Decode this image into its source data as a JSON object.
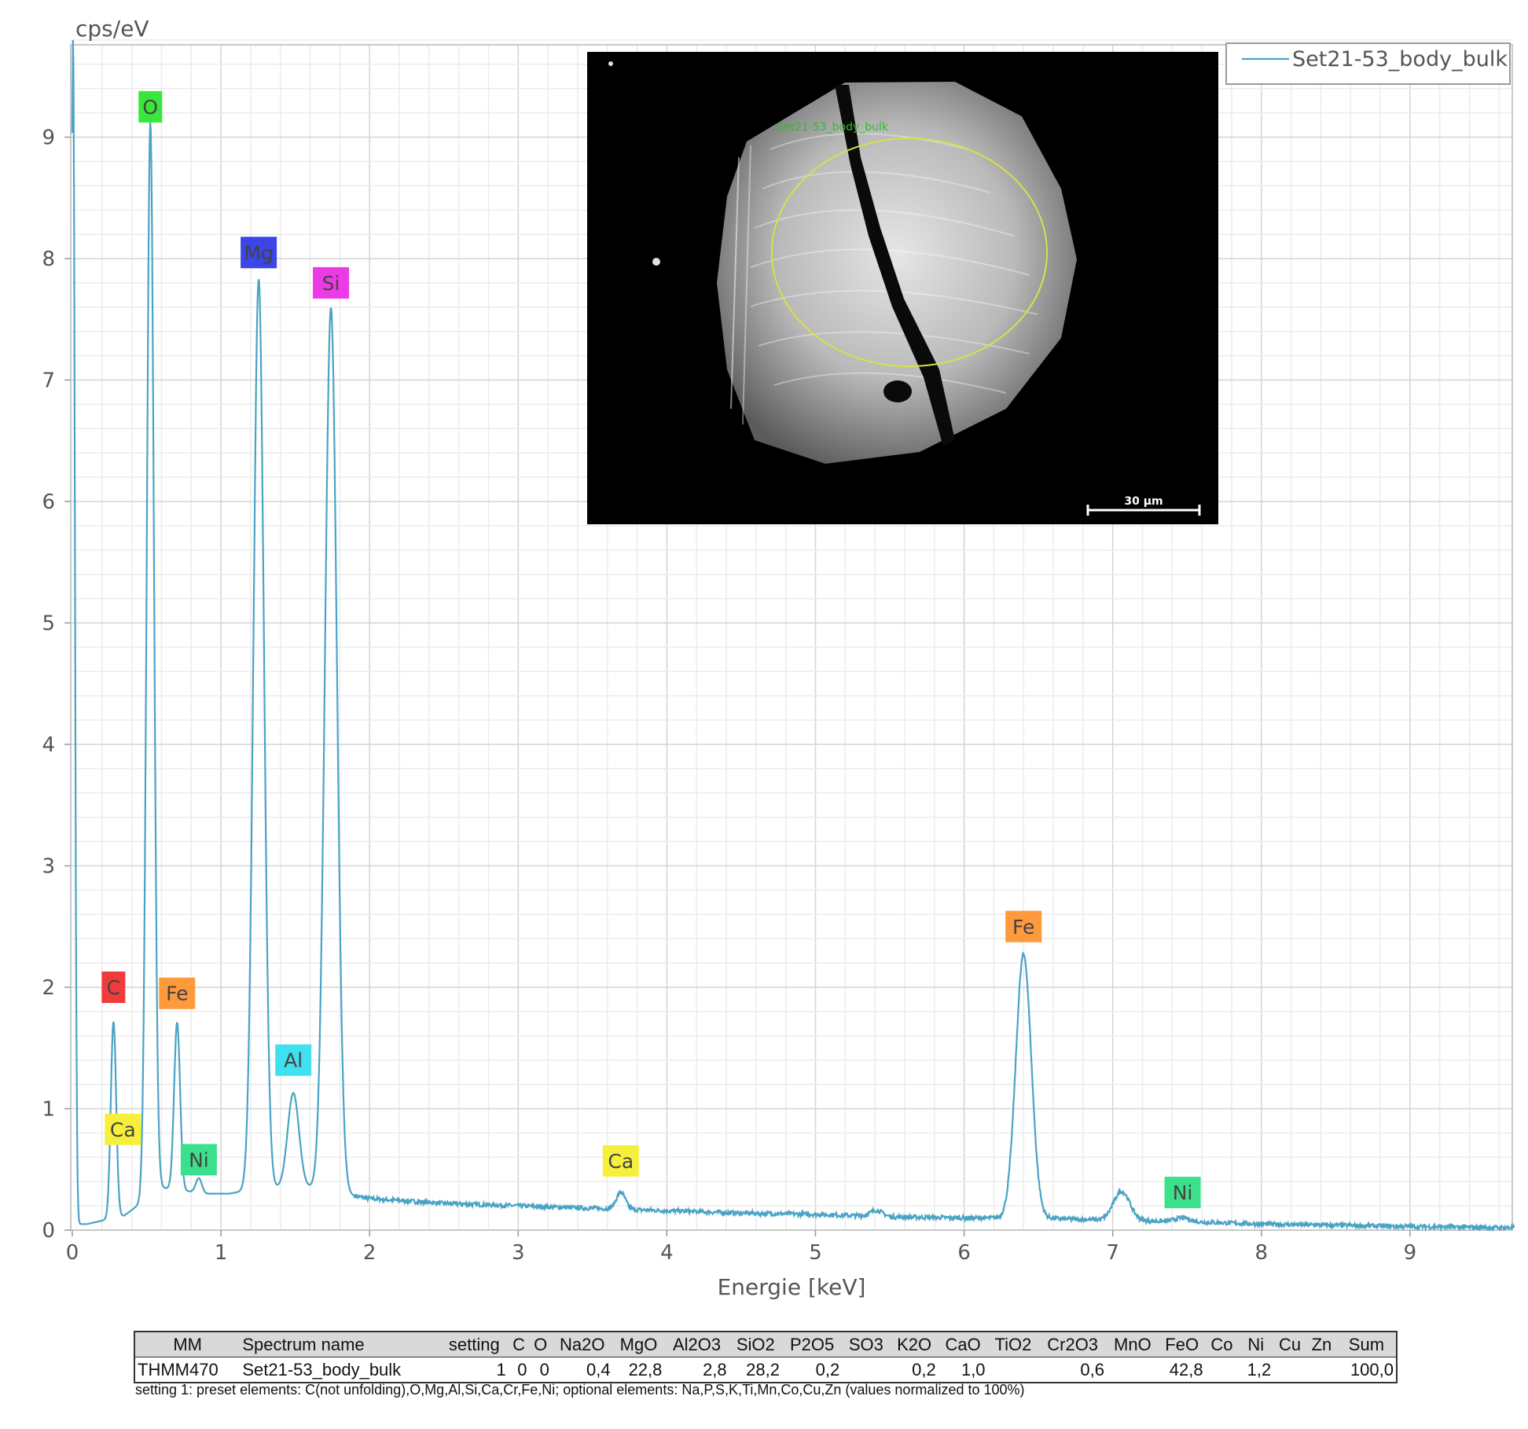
{
  "chart_data": {
    "type": "line",
    "ylabel": "cps/eV",
    "xlabel": "Energie [keV]",
    "xlim": [
      0,
      9.7
    ],
    "ylim": [
      0,
      9.8
    ],
    "x_ticks": [
      "0",
      "1",
      "2",
      "3",
      "4",
      "5",
      "6",
      "7",
      "8",
      "9"
    ],
    "y_ticks": [
      "0",
      "1",
      "2",
      "3",
      "4",
      "5",
      "6",
      "7",
      "8",
      "9"
    ],
    "grid": true,
    "legend": {
      "position": "top-right",
      "entries": [
        "Set21-53_body_bulk"
      ]
    },
    "series": [
      {
        "name": "Set21-53_body_bulk",
        "color": "#4aa3c4",
        "baseline": [
          [
            0.1,
            0.05
          ],
          [
            0.35,
            0.12
          ],
          [
            0.6,
            0.35
          ],
          [
            0.9,
            0.3
          ],
          [
            1.05,
            0.3
          ],
          [
            1.2,
            0.33
          ],
          [
            1.4,
            0.35
          ],
          [
            1.6,
            0.35
          ],
          [
            1.9,
            0.28
          ],
          [
            2.0,
            0.26
          ],
          [
            2.5,
            0.22
          ],
          [
            3.0,
            0.2
          ],
          [
            3.5,
            0.18
          ],
          [
            4.0,
            0.16
          ],
          [
            4.5,
            0.14
          ],
          [
            5.0,
            0.13
          ],
          [
            5.5,
            0.11
          ],
          [
            6.0,
            0.1
          ],
          [
            6.5,
            0.1
          ],
          [
            7.0,
            0.08
          ],
          [
            7.5,
            0.07
          ],
          [
            8.0,
            0.05
          ],
          [
            8.5,
            0.04
          ],
          [
            9.0,
            0.03
          ],
          [
            9.7,
            0.02
          ]
        ],
        "peaks": [
          {
            "center": 0.005,
            "height": 9.8,
            "width": 0.012
          },
          {
            "center": 0.277,
            "height": 1.62,
            "width": 0.018
          },
          {
            "center": 0.525,
            "height": 8.85,
            "width": 0.024
          },
          {
            "center": 0.705,
            "height": 1.38,
            "width": 0.02
          },
          {
            "center": 0.851,
            "height": 0.12,
            "width": 0.02
          },
          {
            "center": 1.254,
            "height": 7.5,
            "width": 0.035
          },
          {
            "center": 1.487,
            "height": 0.78,
            "width": 0.038
          },
          {
            "center": 1.74,
            "height": 7.28,
            "width": 0.04
          },
          {
            "center": 3.69,
            "height": 0.14,
            "width": 0.03
          },
          {
            "center": 5.41,
            "height": 0.05,
            "width": 0.04
          },
          {
            "center": 6.4,
            "height": 2.17,
            "width": 0.052
          },
          {
            "center": 7.06,
            "height": 0.24,
            "width": 0.055
          },
          {
            "center": 7.47,
            "height": 0.03,
            "width": 0.05
          }
        ]
      }
    ],
    "peak_labels": [
      {
        "label": "O",
        "energy": 0.525,
        "level": 9.25,
        "color": "#39e63c"
      },
      {
        "label": "Mg",
        "energy": 1.254,
        "level": 8.05,
        "color": "#3b45e8"
      },
      {
        "label": "Si",
        "energy": 1.74,
        "level": 7.8,
        "color": "#ee3ae6"
      },
      {
        "label": "C",
        "energy": 0.277,
        "level": 2.0,
        "color": "#ef3b3b"
      },
      {
        "label": "Fe",
        "energy": 0.705,
        "level": 1.95,
        "color": "#ff9a3c"
      },
      {
        "label": "Al",
        "energy": 1.487,
        "level": 1.4,
        "color": "#3fe0ef"
      },
      {
        "label": "Ca",
        "energy": 0.34,
        "level": 0.83,
        "color": "#f6f03c"
      },
      {
        "label": "Ni",
        "energy": 0.851,
        "level": 0.58,
        "color": "#3be08c"
      },
      {
        "label": "Ca",
        "energy": 3.69,
        "level": 0.57,
        "color": "#f6f03c"
      },
      {
        "label": "Fe",
        "energy": 6.4,
        "level": 2.5,
        "color": "#ff9a3c"
      },
      {
        "label": "Ni",
        "energy": 7.47,
        "level": 0.31,
        "color": "#3be08c"
      }
    ]
  },
  "inset_image": {
    "marker_label": "Set21-53_body_bulk",
    "scale_bar": "30 µm"
  },
  "table": {
    "headers": [
      "MM",
      "Spectrum name",
      "setting",
      "C",
      "O",
      "Na2O",
      "MgO",
      "Al2O3",
      "SiO2",
      "P2O5",
      "SO3",
      "K2O",
      "CaO",
      "TiO2",
      "Cr2O3",
      "MnO",
      "FeO",
      "Co",
      "Ni",
      "Cu",
      "Zn",
      "Sum"
    ],
    "row": [
      "THMM470",
      "Set21-53_body_bulk",
      "1",
      "0",
      "0",
      "0,4",
      "22,8",
      "2,8",
      "28,2",
      "0,2",
      "",
      "0,2",
      "1,0",
      "",
      "0,6",
      "",
      "42,8",
      "",
      "1,2",
      "",
      "",
      "100,0"
    ]
  },
  "footnote": "setting 1: preset elements: C(not unfolding),O,Mg,Al,Si,Ca,Cr,Fe,Ni; optional elements: Na,P,S,K,Ti,Mn,Co,Cu,Zn (values normalized to 100%)"
}
